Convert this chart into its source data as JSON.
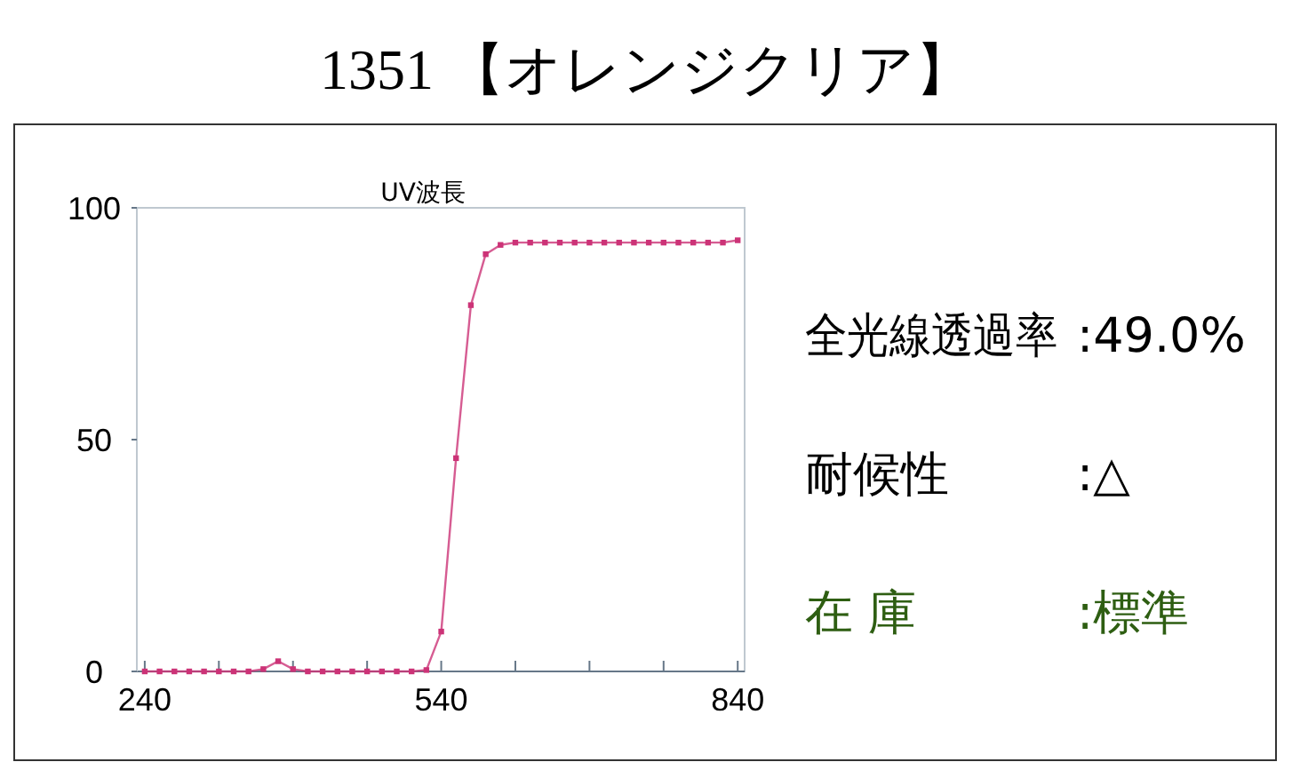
{
  "chart_data": {
    "type": "line",
    "title": "1351 【オレンジクリア】",
    "subtitle": "UV波長",
    "x": [
      240,
      255,
      270,
      285,
      300,
      315,
      330,
      345,
      360,
      375,
      390,
      405,
      420,
      435,
      450,
      465,
      480,
      495,
      510,
      525,
      540,
      555,
      570,
      585,
      600,
      615,
      630,
      645,
      660,
      675,
      690,
      705,
      720,
      735,
      750,
      765,
      780,
      795,
      810,
      825,
      840
    ],
    "series": [
      {
        "color": "#cc3377",
        "values": [
          0,
          0,
          0,
          0,
          0,
          0,
          0,
          0,
          0.5,
          2.2,
          0.5,
          0,
          0,
          0,
          0,
          0,
          0,
          0,
          0,
          0.3,
          8.6,
          46,
          79,
          90,
          92,
          92.5,
          92.5,
          92.5,
          92.5,
          92.5,
          92.5,
          92.5,
          92.5,
          92.5,
          92.5,
          92.5,
          92.5,
          92.5,
          92.5,
          92.5,
          93
        ]
      }
    ],
    "xlim": [
      232,
      847
    ],
    "xticks": [
      240,
      {
        "value": 315,
        "label": null
      },
      {
        "value": 390,
        "label": null
      },
      {
        "value": 465,
        "label": null
      },
      540,
      {
        "value": 615,
        "label": null
      },
      {
        "value": 690,
        "label": null
      },
      {
        "value": 765,
        "label": null
      },
      840
    ],
    "ylim": [
      0,
      100
    ],
    "yticks": [
      0,
      50,
      100
    ],
    "grid": false,
    "marker": "square",
    "line_style": "solid",
    "annotations": [
      "全光線透過率",
      ":49.0%",
      "耐候性",
      ":△",
      "在 庫",
      ":標準"
    ]
  }
}
